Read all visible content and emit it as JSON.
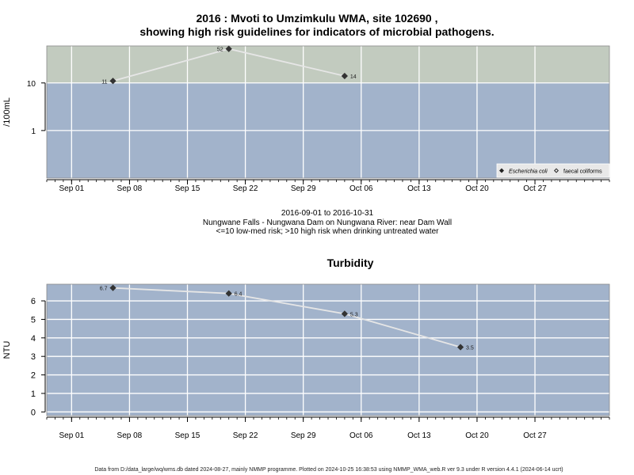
{
  "page": {
    "title_line1": "2016 : Mvoti to Umzimkulu WMA, site 102690 ,",
    "title_line2": "showing high risk guidelines for indicators of microbial pathogens.",
    "subtitle_line1": "2016-09-01 to 2016-10-31",
    "subtitle_line2": "Nungwane Falls - Nungwana Dam on Nungwana River: near Dam Wall",
    "subtitle_line3": "<=10 low-med risk; >10 high risk when drinking untreated water",
    "footer": "Data from D:/data_large/wq/wms.db dated 2024-08-27, mainly NMMP programme. Plotted on 2024-10-25 16:38:53 using NMMP_WMA_web.R ver 9.3 under R version 4.4.1 (2024-06-14 ucrt)"
  },
  "colors": {
    "high_risk_band": "#c2cbbf",
    "low_risk_band": "#a2b3cb",
    "grid": "#ffffff",
    "line": "#e6e6e6",
    "point": "#333333"
  },
  "chart_data": [
    {
      "type": "line",
      "title": "",
      "xlabel": "",
      "ylabel": "/100mL",
      "yscale": "log",
      "xlim": [
        "2016-08-29",
        "2016-11-05"
      ],
      "ylim": [
        0.1,
        60
      ],
      "x_ticks": [
        "Sep 01",
        "Sep 08",
        "Sep 15",
        "Sep 22",
        "Sep 29",
        "Oct 06",
        "Oct 13",
        "Oct 20",
        "Oct 27"
      ],
      "x_tick_dates": [
        "2016-09-01",
        "2016-09-08",
        "2016-09-15",
        "2016-09-22",
        "2016-09-29",
        "2016-10-06",
        "2016-10-13",
        "2016-10-20",
        "2016-10-27"
      ],
      "y_ticks": [
        1,
        10
      ],
      "y_tick_labels": [
        "1",
        "10"
      ],
      "threshold": 10,
      "grid": true,
      "legend_position": "bottom-right",
      "legend": [
        {
          "label": "Escherichia coli",
          "marker": "filled-diamond"
        },
        {
          "label": "faecal coliforms",
          "marker": "open-diamond"
        }
      ],
      "series": [
        {
          "name": "Escherichia coli",
          "x": [
            "2016-09-06",
            "2016-09-20",
            "2016-10-04"
          ],
          "y": [
            11,
            52,
            14
          ],
          "labels": [
            "11",
            "52",
            "14"
          ]
        }
      ]
    },
    {
      "type": "line",
      "title": "Turbidity",
      "xlabel": "",
      "ylabel": "NTU",
      "xlim": [
        "2016-08-29",
        "2016-11-05"
      ],
      "ylim": [
        -0.2,
        6.9
      ],
      "x_ticks": [
        "Sep 01",
        "Sep 08",
        "Sep 15",
        "Sep 22",
        "Sep 29",
        "Oct 06",
        "Oct 13",
        "Oct 20",
        "Oct 27"
      ],
      "x_tick_dates": [
        "2016-09-01",
        "2016-09-08",
        "2016-09-15",
        "2016-09-22",
        "2016-09-29",
        "2016-10-06",
        "2016-10-13",
        "2016-10-20",
        "2016-10-27"
      ],
      "y_ticks": [
        0,
        1,
        2,
        3,
        4,
        5,
        6
      ],
      "y_tick_labels": [
        "0",
        "1",
        "2",
        "3",
        "4",
        "5",
        "6"
      ],
      "grid": true,
      "series": [
        {
          "x": [
            "2016-09-06",
            "2016-09-20",
            "2016-10-04",
            "2016-10-18"
          ],
          "y": [
            6.7,
            6.4,
            5.3,
            3.5
          ],
          "labels": [
            "6.7",
            "6.4",
            "5.3",
            "3.5"
          ]
        }
      ]
    }
  ]
}
